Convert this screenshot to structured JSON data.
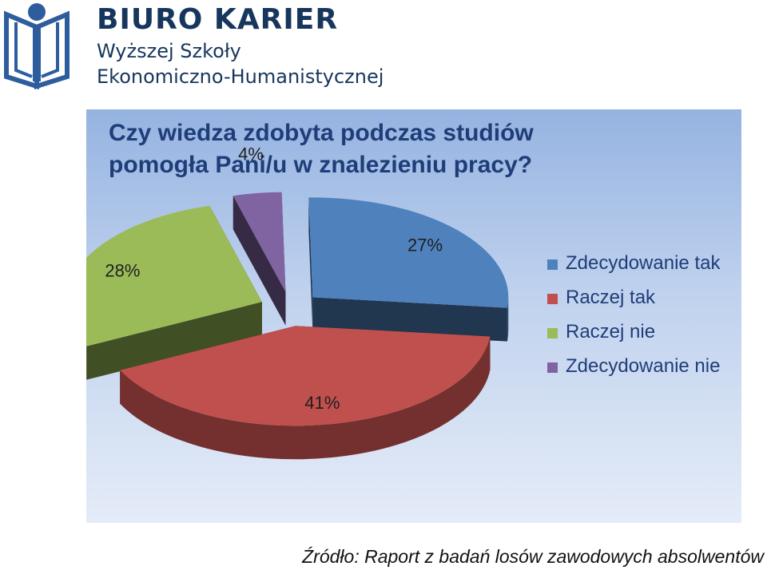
{
  "header": {
    "brand_name": "BIURO KARIER",
    "brand_line2": "Wyższej Szkoły",
    "brand_line3": "Ekonomiczno-Humanistycznej",
    "logo_icon": "open-book-person-logo-icon"
  },
  "chart_data": {
    "type": "pie",
    "title": "Czy wiedza zdobyta podczas studiów pomogła Pani/u w znalezieniu pracy?",
    "categories": [
      "Zdecydowanie tak",
      "Raczej tak",
      "Raczej nie",
      "Zdecydowanie nie"
    ],
    "values": [
      27,
      41,
      28,
      4
    ],
    "data_labels": [
      "27%",
      "41%",
      "28%",
      "4%"
    ],
    "colors": [
      "#4f81bd",
      "#c0504d",
      "#9bbb59",
      "#8064a2"
    ],
    "legend_position": "right",
    "style": "3d-exploded"
  },
  "source": "Źródło: Raport z badań losów zawodowych absolwentów"
}
